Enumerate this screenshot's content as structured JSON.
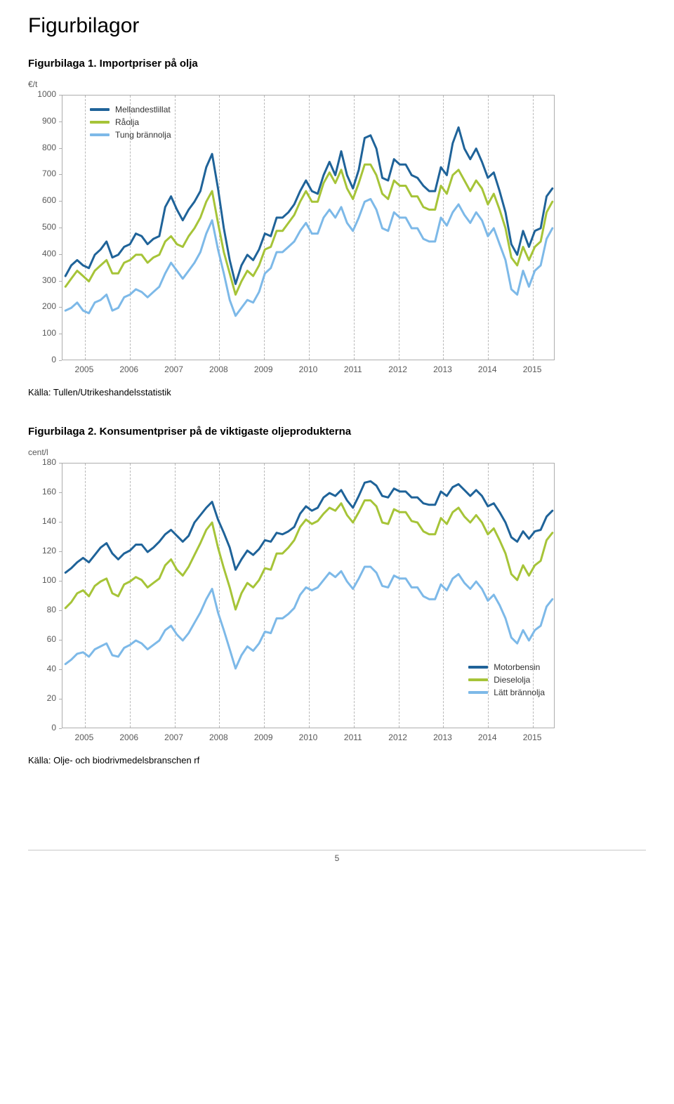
{
  "page": {
    "main_heading": "Figurbilagor",
    "page_number": "5"
  },
  "fig1": {
    "heading": "Figurbilaga 1. Importpriser på olja",
    "source": "Källa: Tullen/Utrikeshandelsstatistik",
    "chart": {
      "type": "line",
      "y_axis_label": "€/t",
      "x_categories": [
        "2005",
        "2006",
        "2007",
        "2008",
        "2009",
        "2010",
        "2011",
        "2012",
        "2013",
        "2014",
        "2015"
      ],
      "ylim": [
        0,
        1000
      ],
      "yticks": [
        0,
        100,
        200,
        300,
        400,
        500,
        600,
        700,
        800,
        900,
        1000
      ],
      "background_color": "#ffffff",
      "grid_color_v": "#b9b9b9",
      "plot_border_color": "#adadad",
      "label_fontsize": 12,
      "label_color": "#595959",
      "legend_position": "top-left",
      "series": [
        {
          "name": "Mellandestlillat",
          "color": "#1f6399",
          "line_width": 3,
          "values": [
            320,
            360,
            380,
            360,
            350,
            400,
            420,
            450,
            390,
            400,
            430,
            440,
            480,
            470,
            440,
            460,
            470,
            580,
            620,
            570,
            530,
            570,
            600,
            640,
            730,
            780,
            650,
            500,
            380,
            290,
            360,
            400,
            380,
            420,
            480,
            470,
            540,
            540,
            560,
            590,
            640,
            680,
            640,
            630,
            700,
            750,
            700,
            790,
            700,
            650,
            720,
            840,
            850,
            800,
            690,
            680,
            760,
            740,
            740,
            700,
            690,
            660,
            640,
            640,
            730,
            700,
            820,
            880,
            800,
            760,
            800,
            750,
            690,
            710,
            640,
            560,
            440,
            400,
            490,
            430,
            490,
            500,
            620,
            650
          ]
        },
        {
          "name": "Råolja",
          "color": "#a6c438",
          "line_width": 3,
          "values": [
            280,
            310,
            340,
            320,
            300,
            340,
            360,
            380,
            330,
            330,
            370,
            380,
            400,
            400,
            370,
            390,
            400,
            450,
            470,
            440,
            430,
            470,
            500,
            540,
            600,
            640,
            520,
            410,
            330,
            250,
            300,
            340,
            320,
            360,
            420,
            430,
            490,
            490,
            520,
            550,
            600,
            640,
            600,
            600,
            670,
            710,
            670,
            720,
            650,
            610,
            670,
            740,
            740,
            700,
            630,
            610,
            680,
            660,
            660,
            620,
            620,
            580,
            570,
            570,
            660,
            630,
            700,
            720,
            680,
            640,
            680,
            650,
            590,
            630,
            570,
            500,
            390,
            360,
            430,
            380,
            430,
            450,
            560,
            600
          ]
        },
        {
          "name": "Tung brännolja",
          "color": "#7db9e8",
          "line_width": 3,
          "values": [
            190,
            200,
            220,
            190,
            180,
            220,
            230,
            250,
            190,
            200,
            240,
            250,
            270,
            260,
            240,
            260,
            280,
            330,
            370,
            340,
            310,
            340,
            370,
            410,
            480,
            530,
            420,
            330,
            230,
            170,
            200,
            230,
            220,
            260,
            330,
            350,
            410,
            410,
            430,
            450,
            490,
            520,
            480,
            480,
            540,
            570,
            540,
            580,
            520,
            490,
            540,
            600,
            610,
            570,
            500,
            490,
            560,
            540,
            540,
            500,
            500,
            460,
            450,
            450,
            540,
            510,
            560,
            590,
            550,
            520,
            560,
            530,
            470,
            500,
            440,
            380,
            270,
            250,
            340,
            280,
            340,
            360,
            460,
            500
          ]
        }
      ]
    }
  },
  "fig2": {
    "heading": "Figurbilaga 2. Konsumentpriser på de viktigaste oljeprodukterna",
    "source": "Källa: Olje- och biodrivmedelsbranschen rf",
    "chart": {
      "type": "line",
      "y_axis_label": "cent/l",
      "x_categories": [
        "2005",
        "2006",
        "2007",
        "2008",
        "2009",
        "2010",
        "2011",
        "2012",
        "2013",
        "2014",
        "2015"
      ],
      "ylim": [
        0,
        180
      ],
      "yticks": [
        0,
        20,
        40,
        60,
        80,
        100,
        120,
        140,
        160,
        180
      ],
      "background_color": "#ffffff",
      "grid_color_v": "#b9b9b9",
      "plot_border_color": "#adadad",
      "label_fontsize": 12,
      "label_color": "#595959",
      "legend_position": "bottom-right",
      "series": [
        {
          "name": "Motorbensin",
          "color": "#1f6399",
          "line_width": 3,
          "values": [
            106,
            109,
            113,
            116,
            113,
            118,
            123,
            126,
            119,
            115,
            119,
            121,
            125,
            125,
            120,
            123,
            127,
            132,
            135,
            131,
            127,
            131,
            140,
            145,
            150,
            154,
            142,
            133,
            123,
            108,
            115,
            121,
            118,
            122,
            128,
            127,
            133,
            132,
            134,
            137,
            146,
            151,
            148,
            150,
            157,
            160,
            158,
            162,
            155,
            150,
            158,
            167,
            168,
            165,
            158,
            157,
            163,
            161,
            161,
            157,
            157,
            153,
            152,
            152,
            161,
            158,
            164,
            166,
            162,
            158,
            162,
            158,
            151,
            153,
            147,
            140,
            130,
            127,
            134,
            129,
            134,
            135,
            144,
            148
          ]
        },
        {
          "name": "Dieselolja",
          "color": "#a6c438",
          "line_width": 3,
          "values": [
            82,
            86,
            92,
            94,
            90,
            97,
            100,
            102,
            92,
            90,
            98,
            100,
            103,
            101,
            96,
            99,
            102,
            111,
            115,
            108,
            104,
            110,
            118,
            126,
            135,
            140,
            123,
            109,
            96,
            81,
            92,
            99,
            96,
            101,
            109,
            108,
            119,
            119,
            123,
            128,
            137,
            142,
            139,
            141,
            146,
            150,
            148,
            153,
            145,
            140,
            147,
            155,
            155,
            151,
            140,
            139,
            149,
            147,
            147,
            141,
            140,
            134,
            132,
            132,
            143,
            139,
            147,
            150,
            144,
            140,
            145,
            140,
            132,
            136,
            128,
            119,
            105,
            101,
            111,
            104,
            111,
            114,
            128,
            133
          ]
        },
        {
          "name": "Lätt brännolja",
          "color": "#7db9e8",
          "line_width": 3,
          "values": [
            44,
            47,
            51,
            52,
            49,
            54,
            56,
            58,
            50,
            49,
            55,
            57,
            60,
            58,
            54,
            57,
            60,
            67,
            70,
            64,
            60,
            65,
            72,
            79,
            88,
            95,
            79,
            67,
            54,
            41,
            50,
            56,
            53,
            58,
            66,
            65,
            75,
            75,
            78,
            82,
            91,
            96,
            94,
            96,
            101,
            106,
            103,
            107,
            100,
            95,
            102,
            110,
            110,
            106,
            97,
            96,
            104,
            102,
            102,
            96,
            96,
            90,
            88,
            88,
            98,
            94,
            102,
            105,
            99,
            95,
            100,
            95,
            87,
            91,
            84,
            75,
            62,
            58,
            67,
            60,
            67,
            70,
            83,
            88
          ]
        }
      ]
    }
  }
}
